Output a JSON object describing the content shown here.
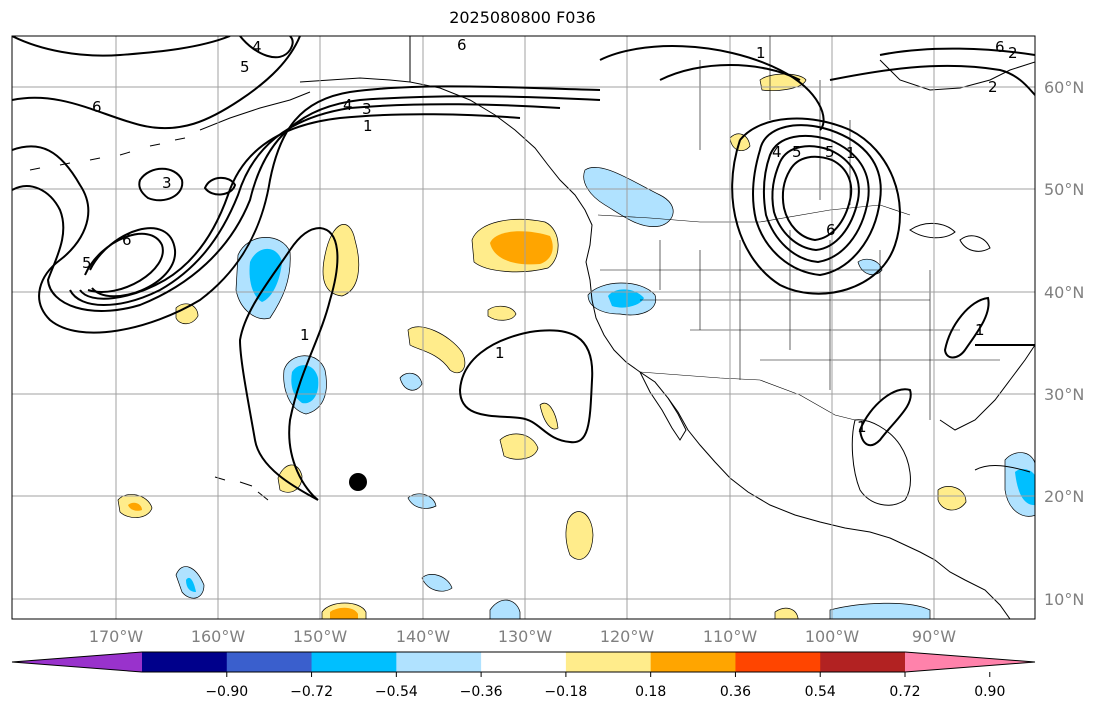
{
  "title": "2025080800 F036",
  "map": {
    "lon_ticks": [
      "170°W",
      "160°W",
      "150°W",
      "140°W",
      "130°W",
      "120°W",
      "110°W",
      "100°W",
      "90°W"
    ],
    "lat_ticks": [
      "60°N",
      "50°N",
      "40°N",
      "30°N",
      "20°N",
      "10°N"
    ],
    "contour_labels": [
      "6",
      "4",
      "5",
      "4",
      "3",
      "1",
      "3",
      "6",
      "5",
      "6",
      "4",
      "5",
      "6",
      "1",
      "6",
      "2",
      "2",
      "5",
      "1",
      "1",
      "1",
      "1",
      "1"
    ],
    "colors": {
      "land_outline": "#000000",
      "grid": "#a0a0a0",
      "contour": "#000000",
      "marker": "#000000"
    }
  },
  "colorbar": {
    "ticks": [
      "−0.90",
      "−0.72",
      "−0.54",
      "−0.36",
      "−0.18",
      "0.18",
      "0.36",
      "0.54",
      "0.72",
      "0.90"
    ],
    "colors": [
      "#9932cc",
      "#00008b",
      "#3a5fcd",
      "#00bfff",
      "#b0e2ff",
      "#ffffff",
      "#ffec8b",
      "#ffa500",
      "#ff4500",
      "#b22222",
      "#ff82ab"
    ]
  }
}
